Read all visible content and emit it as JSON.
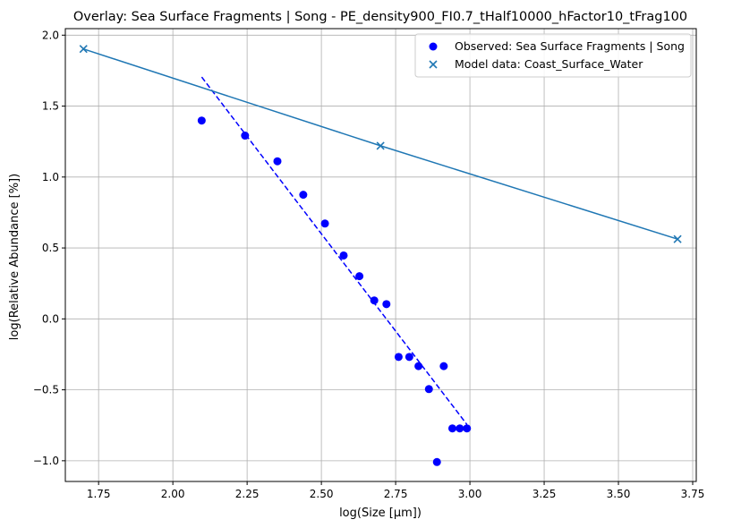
{
  "chart_data": {
    "type": "scatter",
    "title": "Overlay: Sea Surface Fragments | Song - PE_density900_FI0.7_tHalf10000_hFactor10_tFrag100",
    "xlabel": "log(Size [µm])",
    "ylabel": "log(Relative Abundance [%])",
    "xlim": [
      1.638,
      3.762
    ],
    "ylim": [
      -1.146,
      2.046
    ],
    "xticks": [
      {
        "v": 1.75,
        "label": "1.75"
      },
      {
        "v": 2.0,
        "label": "2.00"
      },
      {
        "v": 2.25,
        "label": "2.25"
      },
      {
        "v": 2.5,
        "label": "2.50"
      },
      {
        "v": 2.75,
        "label": "2.75"
      },
      {
        "v": 3.0,
        "label": "3.00"
      },
      {
        "v": 3.25,
        "label": "3.25"
      },
      {
        "v": 3.5,
        "label": "3.50"
      },
      {
        "v": 3.75,
        "label": "3.75"
      }
    ],
    "yticks": [
      {
        "v": -1.0,
        "label": "−1.0"
      },
      {
        "v": -0.5,
        "label": "−0.5"
      },
      {
        "v": 0.0,
        "label": "0.0"
      },
      {
        "v": 0.5,
        "label": "0.5"
      },
      {
        "v": 1.0,
        "label": "1.0"
      },
      {
        "v": 1.5,
        "label": "1.5"
      },
      {
        "v": 2.0,
        "label": "2.0"
      }
    ],
    "grid": true,
    "legend_position": "top-right",
    "series": [
      {
        "name": "Observed: Sea Surface Fragments | Song",
        "kind": "scatter-dot",
        "color": "#0000ff",
        "points": [
          [
            2.097,
            1.398
          ],
          [
            2.243,
            1.292
          ],
          [
            2.352,
            1.111
          ],
          [
            2.439,
            0.875
          ],
          [
            2.512,
            0.672
          ],
          [
            2.575,
            0.447
          ],
          [
            2.628,
            0.301
          ],
          [
            2.678,
            0.13
          ],
          [
            2.719,
            0.104
          ],
          [
            2.76,
            -0.268
          ],
          [
            2.796,
            -0.268
          ],
          [
            2.827,
            -0.333
          ],
          [
            2.862,
            -0.495
          ],
          [
            2.889,
            -1.009
          ],
          [
            2.912,
            -0.333
          ],
          [
            2.941,
            -0.772
          ],
          [
            2.966,
            -0.772
          ],
          [
            2.99,
            -0.772
          ]
        ]
      },
      {
        "name": "Model data: Coast_Surface_Water",
        "kind": "scatter-x",
        "color": "#1f77b4",
        "points": [
          [
            1.699,
            1.903
          ],
          [
            2.699,
            1.22
          ],
          [
            3.699,
            0.562
          ]
        ]
      }
    ],
    "lines": [
      {
        "kind": "dashed-fit",
        "color": "#0000ff",
        "points": [
          [
            2.097,
            1.705
          ],
          [
            2.99,
            -0.745
          ]
        ]
      },
      {
        "kind": "solid-model",
        "color": "#1f77b4",
        "points": [
          [
            1.699,
            1.903
          ],
          [
            2.699,
            1.22
          ],
          [
            3.699,
            0.562
          ]
        ]
      }
    ]
  }
}
